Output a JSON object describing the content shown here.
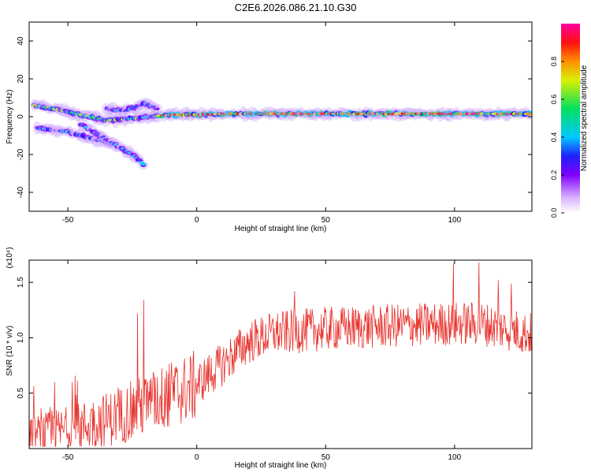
{
  "figure_title": "C2E6.2026.086.21.10.G30",
  "colors": {
    "snr_line": "#e8322d",
    "axis": "#000000",
    "colormap": [
      "#ffffff",
      "#d9b3ff",
      "#8000ff",
      "#2020ff",
      "#00c8ff",
      "#00e060",
      "#d8f000",
      "#ff9000",
      "#ff1010",
      "#ff00a0"
    ]
  },
  "chart_data": [
    {
      "type": "heatmap",
      "title": "C2E6.2026.086.21.10.G30",
      "xlabel": "Height of straight line (km)",
      "ylabel": "Frequency (Hz)",
      "xlim": [
        -65,
        130
      ],
      "ylim": [
        -50,
        50
      ],
      "xticks": [
        -50,
        0,
        50,
        100
      ],
      "yticks": [
        -40,
        -20,
        0,
        20,
        40
      ],
      "xtick_labels": [
        "-50",
        "0",
        "50",
        "100"
      ],
      "ytick_labels": [
        "-40",
        "-20",
        "0",
        "20",
        "40"
      ],
      "colorbar": {
        "label": "Normalized spectral amplitude",
        "range": [
          0,
          1
        ],
        "ticks": [
          "0.0",
          "0.2",
          "0.4",
          "0.6",
          "0.8"
        ]
      },
      "ridges": [
        {
          "name": "main",
          "points": [
            [
              -63,
              6
            ],
            [
              -55,
              4
            ],
            [
              -45,
              1
            ],
            [
              -35,
              -2
            ],
            [
              -25,
              -1
            ],
            [
              -18,
              0
            ],
            [
              -10,
              1
            ],
            [
              0,
              1
            ],
            [
              10,
              1.5
            ],
            [
              30,
              1.5
            ],
            [
              60,
              1.5
            ],
            [
              90,
              1.5
            ],
            [
              130,
              1.5
            ]
          ]
        },
        {
          "name": "lower-branch-1",
          "points": [
            [
              -62,
              -6
            ],
            [
              -50,
              -8
            ],
            [
              -40,
              -12
            ],
            [
              -33,
              -14
            ]
          ]
        },
        {
          "name": "lower-branch-2",
          "points": [
            [
              -45,
              -4
            ],
            [
              -38,
              -10
            ],
            [
              -30,
              -16
            ],
            [
              -25,
              -20
            ],
            [
              -20,
              -26
            ]
          ]
        },
        {
          "name": "upper-branch",
          "points": [
            [
              -35,
              4
            ],
            [
              -28,
              3
            ],
            [
              -20,
              7
            ],
            [
              -15,
              4
            ]
          ]
        }
      ]
    },
    {
      "type": "line",
      "xlabel": "Height of straight line (km)",
      "ylabel": "SNR (10 * v/v)",
      "y_multiplier": "(x10⁴)",
      "xlim": [
        -65,
        130
      ],
      "ylim": [
        0,
        1.7
      ],
      "xticks": [
        -50,
        0,
        50,
        100
      ],
      "yticks": [
        0.5,
        1.0,
        1.5
      ],
      "xtick_labels": [
        "-50",
        "0",
        "50",
        "100"
      ],
      "ytick_labels": [
        "0.5",
        "1.0",
        "1.5"
      ],
      "series": [
        {
          "name": "SNR",
          "trend": [
            [
              -65,
              0.12
            ],
            [
              -45,
              0.22
            ],
            [
              -30,
              0.32
            ],
            [
              -20,
              0.42
            ],
            [
              -10,
              0.52
            ],
            [
              0,
              0.6
            ],
            [
              10,
              0.78
            ],
            [
              20,
              0.98
            ],
            [
              30,
              1.06
            ],
            [
              50,
              1.1
            ],
            [
              70,
              1.12
            ],
            [
              90,
              1.14
            ],
            [
              110,
              1.15
            ],
            [
              130,
              1.05
            ]
          ],
          "peaks": [
            [
              -20.5,
              1.34
            ],
            [
              -23,
              1.22
            ],
            [
              99.5,
              1.67
            ],
            [
              109.5,
              1.68
            ],
            [
              117,
              1.52
            ],
            [
              122,
              1.49
            ],
            [
              38,
              1.42
            ]
          ]
        }
      ]
    }
  ]
}
